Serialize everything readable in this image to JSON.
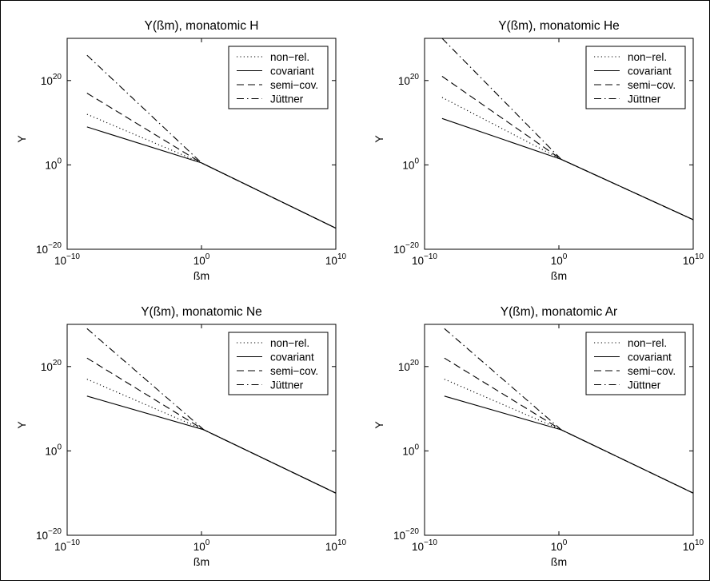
{
  "chart_data": [
    {
      "type": "line",
      "title": "Y(ßm), monatomic H",
      "xlabel": "ßm",
      "ylabel": "Y",
      "xscale": "log",
      "yscale": "log",
      "xlim": [
        1e-10,
        10000000000.0
      ],
      "ylim": [
        1e-20,
        1e+30
      ],
      "xticks": [
        {
          "base": "10",
          "exp": "−10"
        },
        {
          "base": "10",
          "exp": "0"
        },
        {
          "base": "10",
          "exp": "10"
        }
      ],
      "yticks": [
        {
          "base": "10",
          "exp": "−20"
        },
        {
          "base": "10",
          "exp": "0"
        },
        {
          "base": "10",
          "exp": "20"
        }
      ],
      "legend": {
        "position": "top-right"
      },
      "grid": false,
      "series": [
        {
          "name": "non−rel.",
          "style": "dotted",
          "x": [
            3e-09,
            1,
            10000000000.0
          ],
          "y": [
            1000000000000.0,
            3,
            1e-15
          ]
        },
        {
          "name": "covariant",
          "style": "solid",
          "x": [
            3e-09,
            1,
            10000000000.0
          ],
          "y": [
            1000000000.0,
            3,
            1e-15
          ]
        },
        {
          "name": "semi−cov.",
          "style": "dashed",
          "x": [
            3e-09,
            1,
            10000000000.0
          ],
          "y": [
            1e+17,
            3,
            1e-15
          ]
        },
        {
          "name": "Jüttner",
          "style": "dashdot",
          "x": [
            3e-09,
            1,
            10000000000.0
          ],
          "y": [
            1e+26,
            3,
            1e-15
          ]
        }
      ]
    },
    {
      "type": "line",
      "title": "Y(ßm), monatomic He",
      "xlabel": "ßm",
      "ylabel": "Y",
      "xscale": "log",
      "yscale": "log",
      "xlim": [
        1e-10,
        10000000000.0
      ],
      "ylim": [
        1e-20,
        1e+30
      ],
      "xticks": [
        {
          "base": "10",
          "exp": "−10"
        },
        {
          "base": "10",
          "exp": "0"
        },
        {
          "base": "10",
          "exp": "10"
        }
      ],
      "yticks": [
        {
          "base": "10",
          "exp": "−20"
        },
        {
          "base": "10",
          "exp": "0"
        },
        {
          "base": "10",
          "exp": "20"
        }
      ],
      "legend": {
        "position": "top-right"
      },
      "grid": false,
      "series": [
        {
          "name": "non−rel.",
          "style": "dotted",
          "x": [
            2e-09,
            1.5,
            10000000000.0
          ],
          "y": [
            1e+16,
            20,
            1e-13
          ]
        },
        {
          "name": "covariant",
          "style": "solid",
          "x": [
            2e-09,
            1.5,
            10000000000.0
          ],
          "y": [
            100000000000.0,
            20,
            1e-13
          ]
        },
        {
          "name": "semi−cov.",
          "style": "dashed",
          "x": [
            2e-09,
            1.5,
            10000000000.0
          ],
          "y": [
            1e+21,
            20,
            1e-13
          ]
        },
        {
          "name": "Jüttner",
          "style": "dashdot",
          "x": [
            2e-09,
            1.5,
            10000000000.0
          ],
          "y": [
            1e+30,
            20,
            1e-13
          ]
        }
      ]
    },
    {
      "type": "line",
      "title": "Y(ßm), monatomic Ne",
      "xlabel": "ßm",
      "ylabel": "Y",
      "xscale": "log",
      "yscale": "log",
      "xlim": [
        1e-10,
        10000000000.0
      ],
      "ylim": [
        1e-20,
        1e+30
      ],
      "xticks": [
        {
          "base": "10",
          "exp": "−10"
        },
        {
          "base": "10",
          "exp": "0"
        },
        {
          "base": "10",
          "exp": "10"
        }
      ],
      "yticks": [
        {
          "base": "10",
          "exp": "−20"
        },
        {
          "base": "10",
          "exp": "0"
        },
        {
          "base": "10",
          "exp": "20"
        }
      ],
      "legend": {
        "position": "top-right"
      },
      "grid": false,
      "series": [
        {
          "name": "non−rel.",
          "style": "dotted",
          "x": [
            3e-09,
            1.5,
            10000000000.0
          ],
          "y": [
            1e+17,
            100000.0,
            1e-10
          ]
        },
        {
          "name": "covariant",
          "style": "solid",
          "x": [
            3e-09,
            1.5,
            10000000000.0
          ],
          "y": [
            10000000000000.0,
            100000.0,
            1e-10
          ]
        },
        {
          "name": "semi−cov.",
          "style": "dashed",
          "x": [
            3e-09,
            1.5,
            10000000000.0
          ],
          "y": [
            1e+22,
            100000.0,
            1e-10
          ]
        },
        {
          "name": "Jüttner",
          "style": "dashdot",
          "x": [
            3e-09,
            1.5,
            10000000000.0
          ],
          "y": [
            1e+29,
            100000.0,
            1e-10
          ]
        }
      ]
    },
    {
      "type": "line",
      "title": "Y(ßm), monatomic Ar",
      "xlabel": "ßm",
      "ylabel": "Y",
      "xscale": "log",
      "yscale": "log",
      "xlim": [
        1e-10,
        10000000000.0
      ],
      "ylim": [
        1e-20,
        1e+30
      ],
      "xticks": [
        {
          "base": "10",
          "exp": "−10"
        },
        {
          "base": "10",
          "exp": "0"
        },
        {
          "base": "10",
          "exp": "10"
        }
      ],
      "yticks": [
        {
          "base": "10",
          "exp": "−20"
        },
        {
          "base": "10",
          "exp": "0"
        },
        {
          "base": "10",
          "exp": "20"
        }
      ],
      "legend": {
        "position": "top-right"
      },
      "grid": false,
      "series": [
        {
          "name": "non−rel.",
          "style": "dotted",
          "x": [
            3e-09,
            1.5,
            10000000000.0
          ],
          "y": [
            1e+17,
            100000.0,
            1e-10
          ]
        },
        {
          "name": "covariant",
          "style": "solid",
          "x": [
            3e-09,
            1.5,
            10000000000.0
          ],
          "y": [
            10000000000000.0,
            100000.0,
            1e-10
          ]
        },
        {
          "name": "semi−cov.",
          "style": "dashed",
          "x": [
            3e-09,
            1.5,
            10000000000.0
          ],
          "y": [
            1e+22,
            100000.0,
            1e-10
          ]
        },
        {
          "name": "Jüttner",
          "style": "dashdot",
          "x": [
            3e-09,
            1.5,
            10000000000.0
          ],
          "y": [
            1e+29,
            100000.0,
            1e-10
          ]
        }
      ]
    }
  ]
}
